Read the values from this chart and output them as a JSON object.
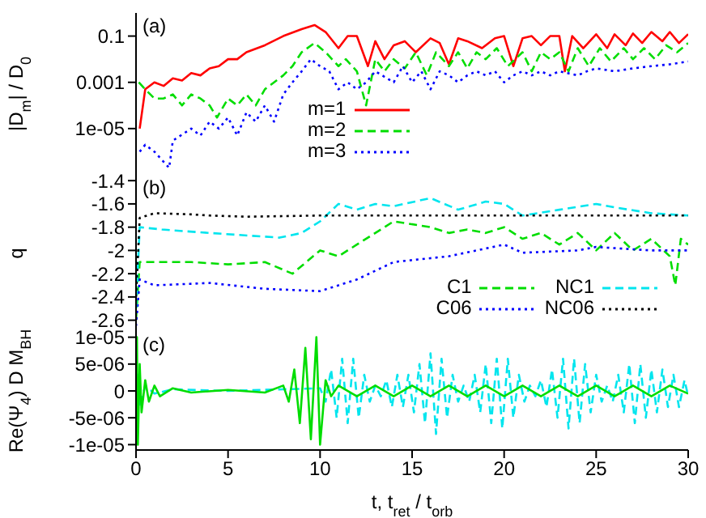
{
  "chart_data": [
    {
      "type": "line",
      "ylabel": "|D$_{m}$| / D$_{0}$",
      "log": "y",
      "annotations": [
        "(a)"
      ],
      "legend": "bottom",
      "tick_labels": "y",
      "xlim": [
        0,
        30
      ],
      "xticks": [
        0,
        5,
        10,
        15,
        20,
        25,
        30
      ],
      "ylim": [
        1e-07,
        1
      ],
      "yticks": [
        {
          "value": 1e-05,
          "label": "1e-05"
        },
        {
          "value": 0.001,
          "label": "0.001"
        },
        {
          "value": 0.1,
          "label": "0.1"
        }
      ],
      "series": [
        {
          "name": "m=1",
          "color": "#ff0000",
          "line_style": "solid",
          "x": [
            0.2,
            0.5,
            1,
            1.5,
            2,
            2.5,
            3,
            3.5,
            4,
            4.5,
            5,
            5.5,
            6,
            7,
            8,
            9,
            9.7,
            10.3,
            11,
            11.5,
            12,
            12.6,
            13,
            13.5,
            14,
            14.6,
            15.2,
            16,
            16.5,
            17,
            17.5,
            18,
            18.8,
            19.5,
            20,
            20.5,
            21,
            21.5,
            22,
            22.5,
            23,
            23.3,
            23.7,
            24.3,
            25,
            25.6,
            26,
            26.6,
            27,
            27.5,
            28,
            28.6,
            29,
            29.5,
            30
          ],
          "values": [
            1e-05,
            0.0005,
            0.001,
            0.0007,
            0.0015,
            0.0012,
            0.0025,
            0.002,
            0.004,
            0.005,
            0.01,
            0.01,
            0.02,
            0.04,
            0.1,
            0.2,
            0.3,
            0.15,
            0.03,
            0.1,
            0.1,
            0.005,
            0.06,
            0.01,
            0.04,
            0.06,
            0.02,
            0.08,
            0.05,
            0.006,
            0.08,
            0.06,
            0.03,
            0.08,
            0.1,
            0.005,
            0.08,
            0.1,
            0.04,
            0.1,
            0.1,
            0.003,
            0.1,
            0.03,
            0.12,
            0.03,
            0.12,
            0.04,
            0.13,
            0.05,
            0.15,
            0.06,
            0.15,
            0.05,
            0.12
          ]
        },
        {
          "name": "m=2",
          "color": "#00dd00",
          "line_style": "dashed",
          "x": [
            0.15,
            0.5,
            1,
            1.5,
            2,
            2.5,
            3,
            3.5,
            4,
            4.4,
            5,
            5.5,
            6,
            6.5,
            7,
            7.5,
            8,
            8.5,
            9,
            9.7,
            10.3,
            11,
            11.4,
            12,
            12.5,
            13,
            13.5,
            14,
            14.6,
            15.2,
            15.8,
            16.3,
            17,
            17.5,
            18,
            18.5,
            19,
            19.6,
            20.2,
            21,
            21.5,
            22,
            22.5,
            23,
            23.5,
            24,
            24.6,
            25.2,
            25.8,
            26.5,
            27,
            27.6,
            28.2,
            28.8,
            29.4,
            30
          ],
          "values": [
            0.001,
            0.0005,
            0.0002,
            0.0002,
            0.0003,
            0.0001,
            0.0003,
            0.0002,
            0.0001,
            3e-05,
            0.0002,
            0.0001,
            0.0003,
            0.0001,
            0.0005,
            0.001,
            0.002,
            0.005,
            0.02,
            0.05,
            0.02,
            0.005,
            0.01,
            0.003,
            0.0001,
            0.01,
            0.003,
            0.01,
            0.004,
            0.02,
            0.002,
            0.02,
            0.005,
            0.02,
            0.004,
            0.02,
            0.01,
            0.03,
            0.005,
            0.02,
            0.003,
            0.02,
            0.01,
            0.02,
            0.003,
            0.03,
            0.005,
            0.03,
            0.008,
            0.03,
            0.01,
            0.03,
            0.01,
            0.04,
            0.02,
            0.05
          ]
        },
        {
          "name": "m=3",
          "color": "#0000ff",
          "line_style": "dotted",
          "x": [
            0.2,
            0.5,
            1,
            1.8,
            2,
            3,
            3.5,
            4,
            4.5,
            5,
            5.5,
            6,
            6.5,
            7,
            7.5,
            8,
            8.5,
            9,
            9.5,
            10,
            10.5,
            11,
            11.5,
            12,
            12.5,
            13,
            14,
            14.5,
            15,
            15.5,
            16,
            16.5,
            17,
            17.5,
            18,
            18.5,
            19,
            19.5,
            20,
            20.5,
            21,
            21.5,
            22,
            22.5,
            23,
            24,
            24.5,
            25,
            26,
            27,
            28,
            29,
            30
          ],
          "values": [
            1e-06,
            2e-06,
            1e-06,
            2e-07,
            3e-06,
            1e-05,
            5e-06,
            2e-05,
            1e-05,
            3e-05,
            5e-06,
            5e-05,
            2e-05,
            0.0001,
            2e-05,
            0.0003,
            0.001,
            0.003,
            0.01,
            0.005,
            0.003,
            0.0005,
            0.001,
            0.0005,
            0.001,
            0.003,
            0.001,
            0.005,
            0.001,
            0.003,
            0.0005,
            0.003,
            0.002,
            0.001,
            0.002,
            0.003,
            0.002,
            0.003,
            0.001,
            0.002,
            0.003,
            0.002,
            0.003,
            0.002,
            0.003,
            0.002,
            0.003,
            0.004,
            0.003,
            0.004,
            0.005,
            0.006,
            0.008
          ]
        }
      ]
    },
    {
      "type": "line",
      "ylabel": "q",
      "annotations": [
        "(b)"
      ],
      "legend": "bottom right",
      "tick_labels": "y",
      "xlim": [
        0,
        30
      ],
      "xticks": [
        0,
        5,
        10,
        15,
        20,
        25,
        30
      ],
      "ylim": [
        -2.7,
        -1.35
      ],
      "yticks": [
        -2.6,
        -2.4,
        -2.2,
        -2,
        -1.8,
        -1.6,
        -1.4
      ],
      "series": [
        {
          "name": "C1",
          "color": "#00dd00",
          "line_style": "dashed",
          "x": [
            0,
            0.2,
            0.5,
            3,
            5,
            7,
            8.5,
            10,
            11,
            12,
            13,
            14,
            16,
            17,
            18,
            19,
            20,
            21,
            22,
            23,
            24,
            25,
            26,
            27,
            28,
            29,
            29.3,
            29.6,
            30
          ],
          "values": [
            -2.6,
            -2.1,
            -2.1,
            -2.1,
            -2.12,
            -2.1,
            -2.2,
            -2.0,
            -2.05,
            -1.95,
            -1.85,
            -1.75,
            -1.8,
            -1.85,
            -1.82,
            -1.85,
            -1.8,
            -1.9,
            -1.85,
            -1.95,
            -1.85,
            -2.0,
            -1.85,
            -2.0,
            -1.9,
            -2.05,
            -2.3,
            -1.9,
            -1.95
          ]
        },
        {
          "name": "C06",
          "color": "#0000ff",
          "line_style": "dotted",
          "x": [
            0,
            0.2,
            1,
            4,
            7,
            10,
            12,
            14,
            17,
            20,
            21,
            24,
            25,
            28,
            30
          ],
          "values": [
            -2.65,
            -2.25,
            -2.3,
            -2.28,
            -2.33,
            -2.35,
            -2.25,
            -2.1,
            -2.05,
            -1.95,
            -2.02,
            -2.0,
            -1.97,
            -2.0,
            -2.0
          ]
        },
        {
          "name": "NC1",
          "color": "#00e5ee",
          "line_style": "dashed",
          "x": [
            0,
            0.2,
            1.4,
            4,
            7.8,
            9,
            10,
            11,
            12,
            13,
            14,
            16,
            17.5,
            19,
            20,
            21,
            23,
            25,
            26,
            28,
            30
          ],
          "values": [
            -2.5,
            -1.8,
            -1.82,
            -1.85,
            -1.89,
            -1.85,
            -1.75,
            -1.6,
            -1.65,
            -1.6,
            -1.62,
            -1.55,
            -1.65,
            -1.58,
            -1.6,
            -1.7,
            -1.65,
            -1.6,
            -1.63,
            -1.68,
            -1.7
          ]
        },
        {
          "name": "NC06",
          "color": "#000000",
          "line_style": "dotted",
          "x": [
            0,
            0.2,
            1,
            3,
            4,
            6,
            10,
            15,
            20,
            25,
            30
          ],
          "values": [
            -2.4,
            -1.72,
            -1.68,
            -1.69,
            -1.7,
            -1.71,
            -1.7,
            -1.7,
            -1.7,
            -1.7,
            -1.7
          ]
        }
      ]
    },
    {
      "type": "line",
      "ylabel": "Re(Ψ$_{4}$) D M$_{BH}$",
      "xlabel": "t, t$_{ret}$ / t$_{orb}$",
      "annotations": [
        "(c)"
      ],
      "xlim": [
        0,
        30
      ],
      "xticks": [
        0,
        5,
        10,
        15,
        20,
        25,
        30
      ],
      "ylim": [
        -1.1e-05,
        1.1e-05
      ],
      "yticks": [
        {
          "value": -1e-05,
          "label": "-1e-05"
        },
        {
          "value": -5e-06,
          "label": "-5e-06"
        },
        {
          "value": 0,
          "label": "0"
        },
        {
          "value": 5e-06,
          "label": "5e-06"
        },
        {
          "value": 1e-05,
          "label": "1e-05"
        }
      ],
      "series": [
        {
          "color": "#00e5ee",
          "line_style": "dashed",
          "x": [
            0,
            0.1,
            0.2,
            0.5,
            1,
            2,
            5,
            8,
            10,
            10.3,
            10.6,
            10.9,
            11.2,
            11.5,
            11.8,
            12.1,
            12.4,
            12.7,
            13,
            13.3,
            13.6,
            13.9,
            14.2,
            14.5,
            14.8,
            15.1,
            15.4,
            15.7,
            16,
            16.3,
            16.6,
            16.9,
            17.2,
            17.5,
            17.8,
            18.1,
            18.4,
            18.7,
            19,
            19.3,
            19.6,
            19.9,
            20.2,
            20.5,
            20.8,
            21.1,
            21.4,
            21.7,
            22,
            22.3,
            22.6,
            22.9,
            23.2,
            23.5,
            23.8,
            24.1,
            24.4,
            24.7,
            25,
            25.3,
            25.6,
            25.9,
            26.2,
            26.5,
            26.8,
            27.1,
            27.4,
            27.7,
            28,
            28.3,
            28.6,
            28.9,
            29.2,
            29.5,
            29.8,
            30
          ],
          "values": [
            0,
            3e-06,
            -3e-06,
            1e-06,
            -5e-07,
            3e-07,
            0,
            3e-07,
            5e-07,
            -2e-06,
            4e-06,
            -5e-06,
            6e-06,
            -6e-06,
            6e-06,
            -5e-06,
            3e-06,
            -2e-06,
            1e-06,
            -1e-06,
            2e-06,
            -3e-06,
            3e-06,
            -3e-06,
            3e-06,
            -4e-06,
            5e-06,
            -6e-06,
            7e-06,
            -8e-06,
            6e-06,
            -5e-06,
            3e-06,
            -2e-06,
            1e-06,
            -2e-06,
            3e-06,
            -4e-06,
            5e-06,
            -6e-06,
            6e-06,
            -7e-06,
            6e-06,
            -5e-06,
            3e-06,
            -2e-06,
            1e-06,
            -1e-06,
            2e-06,
            -3e-06,
            4e-06,
            -5e-06,
            6e-06,
            -7e-06,
            6e-06,
            -6e-06,
            5e-06,
            -4e-06,
            3e-06,
            -2e-06,
            1e-06,
            -2e-06,
            3e-06,
            -4e-06,
            5e-06,
            -6e-06,
            5e-06,
            -5e-06,
            4e-06,
            -4e-06,
            4e-06,
            -3e-06,
            3e-06,
            -3e-06,
            2e-06,
            -1e-06
          ]
        },
        {
          "color": "#00dd00",
          "line_style": "solid",
          "x": [
            0,
            0.05,
            0.1,
            0.2,
            0.3,
            0.5,
            0.7,
            1,
            1.3,
            2,
            3,
            5,
            7,
            8,
            8.3,
            8.6,
            8.9,
            9.2,
            9.5,
            9.8,
            10,
            10.3,
            10.6,
            11,
            12,
            13,
            14,
            15,
            16,
            17,
            18,
            19,
            20,
            21,
            22,
            23,
            24,
            25,
            26,
            27,
            28,
            29,
            30
          ],
          "values": [
            0,
            1e-05,
            -1e-05,
            5e-06,
            -4e-06,
            2e-06,
            -2e-06,
            1e-06,
            -1e-06,
            5e-07,
            -3e-07,
            2e-07,
            -3e-07,
            1e-06,
            -2e-06,
            4e-06,
            -6e-06,
            8e-06,
            -9e-06,
            1e-05,
            -1e-05,
            2e-06,
            -1e-06,
            1e-06,
            -1e-06,
            1e-06,
            -1e-06,
            1e-06,
            -1e-06,
            1e-06,
            -1e-06,
            1e-06,
            -1e-06,
            1e-06,
            -1e-06,
            1e-06,
            -1e-06,
            1e-06,
            -1e-06,
            1e-06,
            -1e-06,
            1e-06,
            -5e-07
          ]
        }
      ]
    }
  ]
}
